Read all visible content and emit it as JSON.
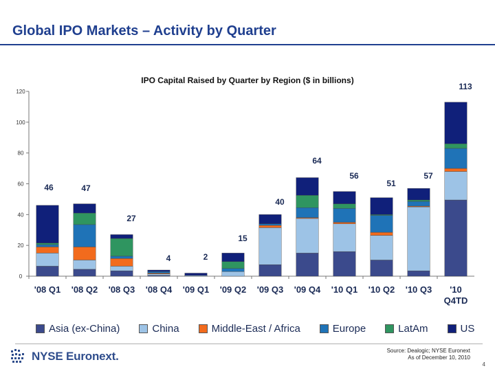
{
  "slide": {
    "title": "Global IPO Markets – Activity by Quarter",
    "source_line1": "Source: Dealogic; NYSE Euronext",
    "source_line2": "As of December 10, 2010",
    "page_number": "4",
    "logo_text": "NYSE Euronext."
  },
  "colors": {
    "title": "#1f3f8f",
    "rule": "#1f3f8f",
    "text": "#1a2a55"
  },
  "chart_data": {
    "type": "bar",
    "stacked": true,
    "title": "IPO Capital Raised by Quarter by Region ($ in billions)",
    "xlabel": "",
    "ylabel": "",
    "ylim": [
      0,
      120
    ],
    "yticks": [
      0,
      20,
      40,
      60,
      80,
      100,
      120
    ],
    "grid": false,
    "legend_position": "bottom",
    "categories": [
      "'08 Q1",
      "'08 Q2",
      "'08 Q3",
      "'08 Q4",
      "'09 Q1",
      "'09 Q2",
      "'09 Q3",
      "'09 Q4",
      "'10 Q1",
      "'10 Q2",
      "'10 Q3",
      "'10 Q4TD"
    ],
    "totals": [
      46,
      47,
      27,
      4,
      2,
      15,
      40,
      64,
      56,
      51,
      57,
      113
    ],
    "series": [
      {
        "name": "Asia (ex-China)",
        "color": "#3b4a8c",
        "values": [
          6.5,
          4.5,
          3.5,
          0.5,
          0,
          0,
          7.5,
          15,
          16,
          10.5,
          3.5,
          49.5
        ]
      },
      {
        "name": "China",
        "color": "#9dc3e6",
        "values": [
          8.5,
          6,
          3,
          1,
          0.5,
          3,
          24,
          22.5,
          18,
          16,
          41.5,
          18.5
        ]
      },
      {
        "name": "Middle-East / Africa",
        "color": "#f26b1d",
        "values": [
          4,
          8.5,
          5,
          0.5,
          0,
          0,
          1.5,
          0.5,
          1,
          2,
          0.5,
          2
        ]
      },
      {
        "name": "Europe",
        "color": "#1f73b7",
        "values": [
          1.5,
          14.5,
          1.5,
          1,
          0,
          2,
          1,
          6.5,
          9,
          11,
          3,
          13
        ]
      },
      {
        "name": "LatAm",
        "color": "#2f9560",
        "values": [
          1,
          7.5,
          11.5,
          0,
          0,
          4.5,
          0,
          8,
          3,
          0.5,
          1,
          3
        ]
      },
      {
        "name": "US",
        "color": "#10207a",
        "values": [
          24.5,
          6,
          2.5,
          1,
          1.5,
          5.5,
          6,
          11.5,
          8,
          11,
          7.5,
          27
        ]
      }
    ]
  }
}
